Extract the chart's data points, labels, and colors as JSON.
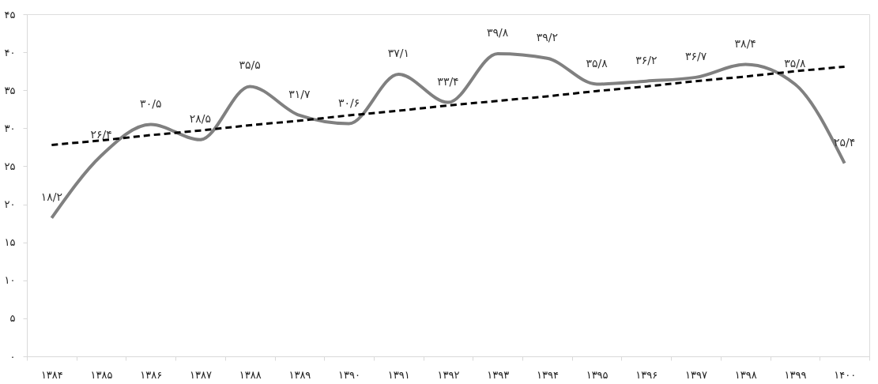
{
  "chart_data": {
    "type": "line",
    "categories": [
      "۱۳۸۴",
      "۱۳۸۵",
      "۱۳۸۶",
      "۱۳۸۷",
      "۱۳۸۸",
      "۱۳۸۹",
      "۱۳۹۰",
      "۱۳۹۱",
      "۱۳۹۲",
      "۱۳۹۳",
      "۱۳۹۴",
      "۱۳۹۵",
      "۱۳۹۶",
      "۱۳۹۷",
      "۱۳۹۸",
      "۱۳۹۹",
      "۱۴۰۰"
    ],
    "series": [
      {
        "color": "#808080",
        "line_style": "solid",
        "values": [
          18.2,
          26.4,
          30.5,
          28.5,
          35.5,
          31.7,
          30.6,
          37.1,
          33.4,
          39.8,
          39.2,
          35.8,
          36.2,
          36.7,
          38.4,
          35.8,
          25.4
        ],
        "value_labels": [
          "۱۸/۲",
          "۲۶/۴",
          "۳۰/۵",
          "۲۸/۵",
          "۳۵/۵",
          "۳۱/۷",
          "۳۰/۶",
          "۳۷/۱",
          "۳۳/۴",
          "۳۹/۸",
          "۳۹/۲",
          "۳۵/۸",
          "۳۶/۲",
          "۳۶/۷",
          "۳۸/۴",
          "۳۵/۸",
          "۲۵/۴"
        ]
      },
      {
        "color": "#000000",
        "line_style": "dashed",
        "values": [
          27.8,
          28.4,
          29.1,
          29.7,
          30.4,
          31.0,
          31.7,
          32.3,
          33.0,
          33.6,
          34.2,
          34.9,
          35.5,
          36.2,
          36.8,
          37.5,
          38.1
        ]
      }
    ],
    "ylim": [
      0,
      45
    ],
    "yticks": [
      {
        "value": 0,
        "label": "۰"
      },
      {
        "value": 5,
        "label": "۵"
      },
      {
        "value": 10,
        "label": "۱۰"
      },
      {
        "value": 15,
        "label": "۱۵"
      },
      {
        "value": 20,
        "label": "۲۰"
      },
      {
        "value": 25,
        "label": "۲۵"
      },
      {
        "value": 30,
        "label": "۳۰"
      },
      {
        "value": 35,
        "label": "۳۵"
      },
      {
        "value": 40,
        "label": "۴۰"
      },
      {
        "value": 45,
        "label": "۴۵"
      }
    ],
    "grid": false,
    "marker": "none"
  }
}
